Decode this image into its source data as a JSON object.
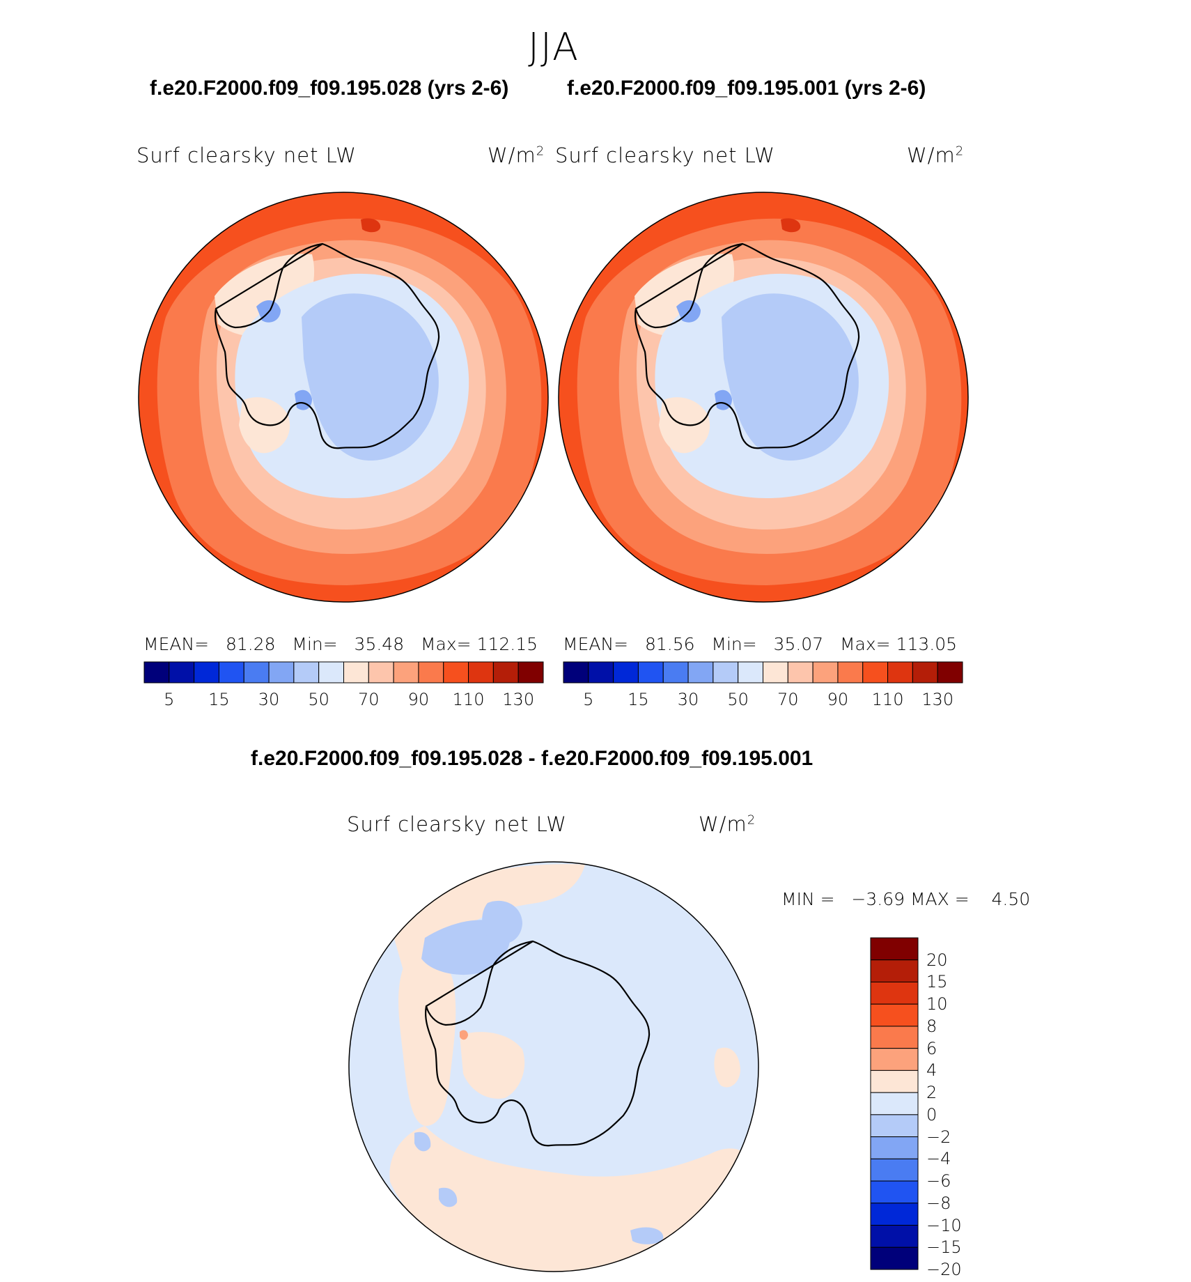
{
  "figure_title": "JJA",
  "colors": {
    "abs_levels": [
      "#00007a",
      "#0010a8",
      "#0028d8",
      "#2054f2",
      "#4a7cf2",
      "#82a6f4",
      "#b4cbf8",
      "#dbe8fb",
      "#fde6d6",
      "#fdc5ac",
      "#fca27c",
      "#fa7a4c",
      "#f6501e",
      "#de3510",
      "#b41e08",
      "#800000"
    ],
    "anom_levels": [
      "#800000",
      "#b41e08",
      "#de3510",
      "#f6501e",
      "#fa7a4c",
      "#fca27c",
      "#fde6d6",
      "#dbe8fb",
      "#b4cbf8",
      "#82a6f4",
      "#4a7cf2",
      "#2054f2",
      "#0028d8",
      "#0010a8",
      "#00007a"
    ]
  },
  "panels": [
    {
      "case_title": "f.e20.F2000.f09_f09.195.028 (yrs 2-6)",
      "field": "Surf clearsky net LW",
      "units": "W/m",
      "units_sup": "2",
      "stats": {
        "mean_label": "MEAN=",
        "mean": "81.28",
        "min_label": "Min=",
        "min": "35.48",
        "max_label": "Max=",
        "max": "112.15"
      },
      "colorbar_labels": [
        "5",
        "15",
        "30",
        "50",
        "70",
        "90",
        "110",
        "130"
      ]
    },
    {
      "case_title": "f.e20.F2000.f09_f09.195.001 (yrs 2-6)",
      "field": "Surf clearsky net LW",
      "units": "W/m",
      "units_sup": "2",
      "stats": {
        "mean_label": "MEAN=",
        "mean": "81.56",
        "min_label": "Min=",
        "min": "35.07",
        "max_label": "Max=",
        "max": "113.05"
      },
      "colorbar_labels": [
        "5",
        "15",
        "30",
        "50",
        "70",
        "90",
        "110",
        "130"
      ]
    }
  ],
  "difference": {
    "title": "f.e20.F2000.f09_f09.195.028 - f.e20.F2000.f09_f09.195.001",
    "field": "Surf clearsky net LW",
    "units": "W/m",
    "units_sup": "2",
    "stats": {
      "min_label": "MIN =",
      "min": "−3.69",
      "max_label": "MAX =",
      "max": "4.50"
    },
    "colorbar_labels": [
      "20",
      "15",
      "10",
      "8",
      "6",
      "4",
      "2",
      "0",
      "−2",
      "−4",
      "−6",
      "−8",
      "−10",
      "−15",
      "−20"
    ]
  }
}
